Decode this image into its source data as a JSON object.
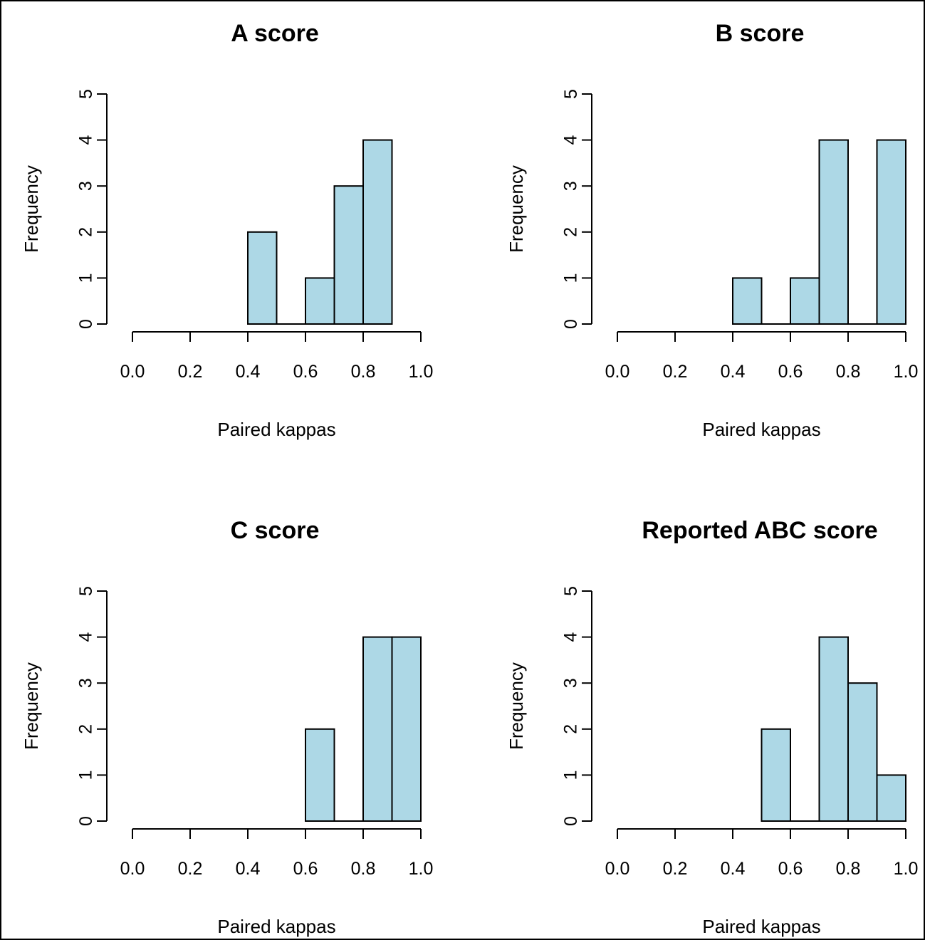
{
  "chart_data": [
    {
      "type": "bar",
      "title": "A score",
      "xlabel": "Paired kappas",
      "ylabel": "Frequency",
      "bins": [
        [
          0.4,
          0.5
        ],
        [
          0.5,
          0.6
        ],
        [
          0.6,
          0.7
        ],
        [
          0.7,
          0.8
        ],
        [
          0.8,
          0.9
        ]
      ],
      "values": [
        2,
        0,
        1,
        3,
        4
      ],
      "xlim": [
        0,
        1
      ],
      "ylim": [
        0,
        5
      ],
      "xticks": [
        "0.0",
        "0.2",
        "0.4",
        "0.6",
        "0.8",
        "1.0"
      ],
      "yticks": [
        "0",
        "1",
        "2",
        "3",
        "4",
        "5"
      ],
      "bar_color": "#add8e6",
      "grid": false
    },
    {
      "type": "bar",
      "title": "B score",
      "xlabel": "Paired kappas",
      "ylabel": "Frequency",
      "bins": [
        [
          0.4,
          0.5
        ],
        [
          0.5,
          0.6
        ],
        [
          0.6,
          0.7
        ],
        [
          0.7,
          0.8
        ],
        [
          0.8,
          0.9
        ],
        [
          0.9,
          1.0
        ]
      ],
      "values": [
        1,
        0,
        1,
        4,
        0,
        4
      ],
      "xlim": [
        0,
        1
      ],
      "ylim": [
        0,
        5
      ],
      "xticks": [
        "0.0",
        "0.2",
        "0.4",
        "0.6",
        "0.8",
        "1.0"
      ],
      "yticks": [
        "0",
        "1",
        "2",
        "3",
        "4",
        "5"
      ],
      "bar_color": "#add8e6",
      "grid": false
    },
    {
      "type": "bar",
      "title": "C score",
      "xlabel": "Paired kappas",
      "ylabel": "Frequency",
      "bins": [
        [
          0.6,
          0.7
        ],
        [
          0.7,
          0.8
        ],
        [
          0.8,
          0.9
        ],
        [
          0.9,
          1.0
        ]
      ],
      "values": [
        2,
        0,
        4,
        4
      ],
      "xlim": [
        0,
        1
      ],
      "ylim": [
        0,
        5
      ],
      "xticks": [
        "0.0",
        "0.2",
        "0.4",
        "0.6",
        "0.8",
        "1.0"
      ],
      "yticks": [
        "0",
        "1",
        "2",
        "3",
        "4",
        "5"
      ],
      "bar_color": "#add8e6",
      "grid": false
    },
    {
      "type": "bar",
      "title": "Reported ABC score",
      "xlabel": "Paired kappas",
      "ylabel": "Frequency",
      "bins": [
        [
          0.5,
          0.6
        ],
        [
          0.6,
          0.7
        ],
        [
          0.7,
          0.8
        ],
        [
          0.8,
          0.9
        ],
        [
          0.9,
          1.0
        ]
      ],
      "values": [
        2,
        0,
        4,
        3,
        1
      ],
      "xlim": [
        0,
        1
      ],
      "ylim": [
        0,
        5
      ],
      "xticks": [
        "0.0",
        "0.2",
        "0.4",
        "0.6",
        "0.8",
        "1.0"
      ],
      "yticks": [
        "0",
        "1",
        "2",
        "3",
        "4",
        "5"
      ],
      "bar_color": "#add8e6",
      "grid": false
    }
  ]
}
